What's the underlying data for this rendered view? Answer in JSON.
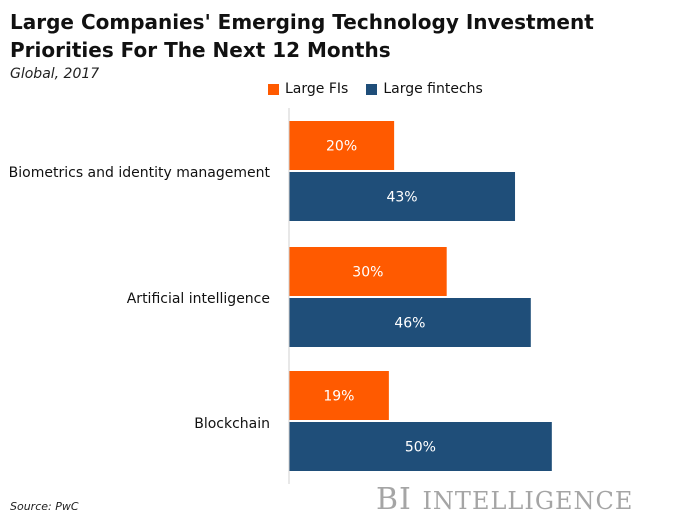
{
  "title": "Large Companies' Emerging Technology Investment Priorities For The Next 12 Months",
  "subtitle": "Global, 2017",
  "source": "Source: PwC",
  "brand": {
    "first": "BI",
    "second": "Intelligence"
  },
  "colors": {
    "large_fis": "#FF5A00",
    "large_fintechs": "#1F4E79"
  },
  "chart_data": {
    "type": "bar",
    "orientation": "horizontal",
    "categories": [
      "Biometrics and identity management",
      "Artificial intelligence",
      "Blockchain"
    ],
    "series": [
      {
        "name": "Large FIs",
        "values": [
          20,
          30,
          19
        ],
        "labels": [
          "20%",
          "30%",
          "19%"
        ]
      },
      {
        "name": "Large fintechs",
        "values": [
          43,
          46,
          50
        ],
        "labels": [
          "43%",
          "46%",
          "50%"
        ]
      }
    ],
    "xlim": [
      0,
      78
    ],
    "legend": "top",
    "grid": false
  }
}
